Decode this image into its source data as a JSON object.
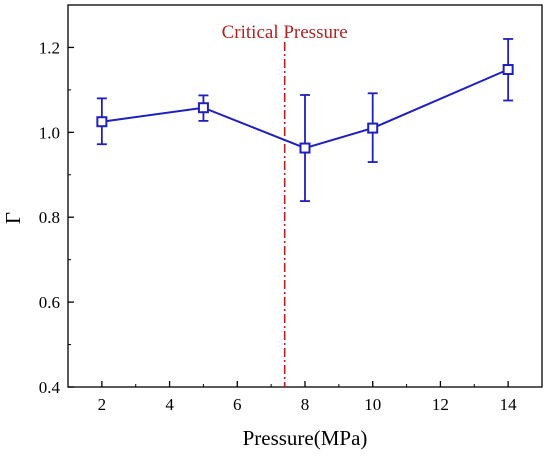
{
  "chart_data": {
    "type": "line",
    "title": "",
    "xlabel": "Pressure(MPa)",
    "ylabel": "Γ",
    "xlim": [
      1,
      15
    ],
    "ylim": [
      0.4,
      1.3
    ],
    "x_ticks": [
      2,
      4,
      6,
      8,
      10,
      12,
      14
    ],
    "y_ticks": [
      0.4,
      0.6,
      0.8,
      1.0,
      1.2
    ],
    "x_tick_labels": [
      "2",
      "4",
      "6",
      "8",
      "10",
      "12",
      "14"
    ],
    "y_tick_labels": [
      "0.4",
      "0.6",
      "0.8",
      "1.0",
      "1.2"
    ],
    "grid": false,
    "series": [
      {
        "marker": "open-square",
        "color": "#1f1fbf",
        "x": [
          2,
          5,
          8,
          10,
          14
        ],
        "y": [
          1.025,
          1.058,
          0.963,
          1.01,
          1.148
        ],
        "y_lower": [
          0.972,
          1.027,
          0.838,
          0.93,
          1.075
        ],
        "y_upper": [
          1.08,
          1.087,
          1.088,
          1.092,
          1.22
        ]
      }
    ],
    "annotations": [
      {
        "type": "vertical-line",
        "x": 7.4,
        "style": "dash-dot",
        "color": "#b22222",
        "label": "Critical Pressure"
      }
    ]
  }
}
